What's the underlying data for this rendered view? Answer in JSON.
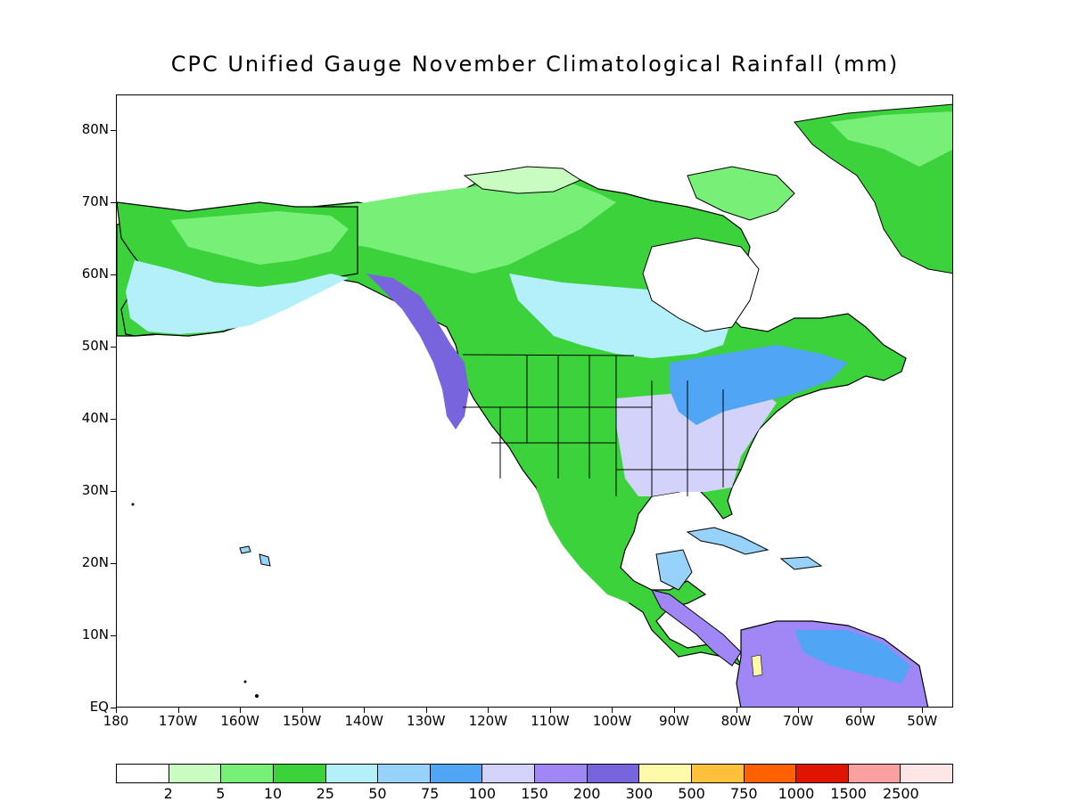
{
  "title": "CPC Unified Gauge November Climatological Rainfall (mm)",
  "map": {
    "projection": "lat-lon",
    "lon_range": [
      -180,
      -45
    ],
    "lat_range": [
      0,
      85
    ],
    "lat_ticks": [
      {
        "lat": 80,
        "label": "80N"
      },
      {
        "lat": 70,
        "label": "70N"
      },
      {
        "lat": 60,
        "label": "60N"
      },
      {
        "lat": 50,
        "label": "50N"
      },
      {
        "lat": 40,
        "label": "40N"
      },
      {
        "lat": 30,
        "label": "30N"
      },
      {
        "lat": 20,
        "label": "20N"
      },
      {
        "lat": 10,
        "label": "10N"
      },
      {
        "lat": 0,
        "label": "EQ"
      }
    ],
    "lon_ticks": [
      {
        "lon": -180,
        "label": "180"
      },
      {
        "lon": -170,
        "label": "170W"
      },
      {
        "lon": -160,
        "label": "160W"
      },
      {
        "lon": -150,
        "label": "150W"
      },
      {
        "lon": -140,
        "label": "140W"
      },
      {
        "lon": -130,
        "label": "130W"
      },
      {
        "lon": -120,
        "label": "120W"
      },
      {
        "lon": -110,
        "label": "110W"
      },
      {
        "lon": -100,
        "label": "100W"
      },
      {
        "lon": -90,
        "label": "90W"
      },
      {
        "lon": -80,
        "label": "80W"
      },
      {
        "lon": -70,
        "label": "70W"
      },
      {
        "lon": -60,
        "label": "60W"
      },
      {
        "lon": -50,
        "label": "50W"
      }
    ]
  },
  "colorbar": {
    "colors": [
      "#ffffff",
      "#c8fcc0",
      "#78f078",
      "#3cd23c",
      "#b4f0fa",
      "#96d2fa",
      "#50a5f5",
      "#d2d2fa",
      "#a087f5",
      "#7864dc",
      "#fffaaa",
      "#ffc03c",
      "#ff6000",
      "#e11400",
      "#faa0a0",
      "#ffe6e6"
    ],
    "labels": [
      "2",
      "5",
      "10",
      "25",
      "50",
      "75",
      "100",
      "150",
      "200",
      "300",
      "500",
      "750",
      "1000",
      "1500",
      "2500"
    ]
  }
}
